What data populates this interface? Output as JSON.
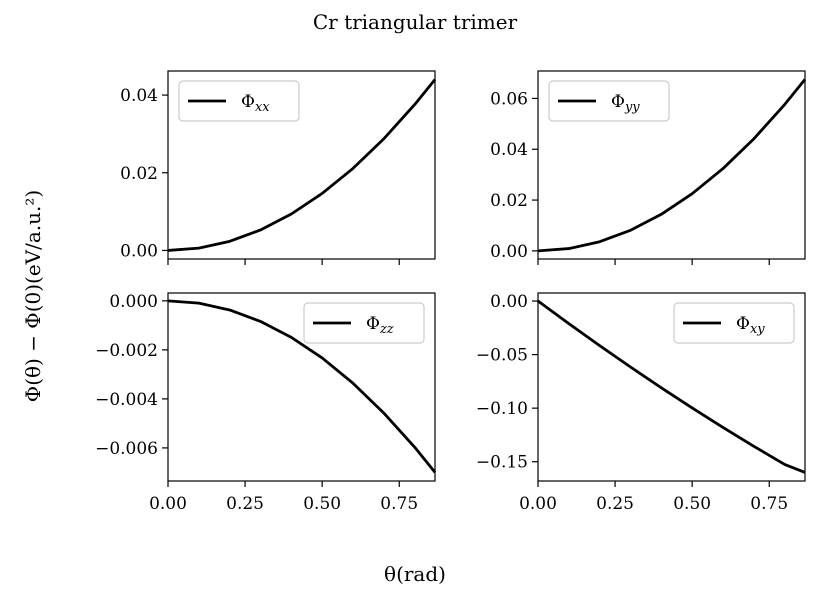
{
  "figure": {
    "title": "Cr triangular trimer",
    "xlabel": "θ(rad)",
    "ylabel": "Φ(θ) − Φ(0)(eV/a.u.²)"
  },
  "chart_data": [
    {
      "type": "line",
      "series": [
        {
          "name": "Φxx",
          "legend_main": "Φ",
          "legend_sub": "xx",
          "x": [
            0,
            0.1,
            0.2,
            0.3,
            0.4,
            0.5,
            0.6,
            0.7,
            0.8,
            0.866
          ],
          "values": [
            0,
            0.00059,
            0.00235,
            0.00528,
            0.00939,
            0.01467,
            0.02112,
            0.02875,
            0.03755,
            0.044
          ]
        }
      ],
      "xlim": [
        0,
        0.866
      ],
      "ylim": [
        -0.0022,
        0.0462
      ],
      "xticks": [
        0,
        0.25,
        0.5,
        0.75
      ],
      "xtick_labels": [],
      "yticks": [
        0,
        0.02,
        0.04
      ],
      "ytick_labels": [
        "0.00",
        "0.02",
        "0.04"
      ],
      "legend": "top-left",
      "grid": false
    },
    {
      "type": "line",
      "series": [
        {
          "name": "Φyy",
          "legend_main": "Φ",
          "legend_sub": "yy",
          "x": [
            0,
            0.1,
            0.2,
            0.3,
            0.4,
            0.5,
            0.6,
            0.7,
            0.8,
            0.866
          ],
          "values": [
            0,
            0.0009,
            0.0036,
            0.0081,
            0.0144,
            0.0225,
            0.0324,
            0.0441,
            0.0576,
            0.0675
          ]
        }
      ],
      "xlim": [
        0,
        0.866
      ],
      "ylim": [
        -0.0032,
        0.0708
      ],
      "xticks": [
        0,
        0.25,
        0.5,
        0.75
      ],
      "xtick_labels": [],
      "yticks": [
        0,
        0.02,
        0.04,
        0.06
      ],
      "ytick_labels": [
        "0.00",
        "0.02",
        "0.04",
        "0.06"
      ],
      "legend": "top-left",
      "grid": false
    },
    {
      "type": "line",
      "series": [
        {
          "name": "Φzz",
          "legend_main": "Φ",
          "legend_sub": "zz",
          "x": [
            0,
            0.1,
            0.2,
            0.3,
            0.4,
            0.5,
            0.6,
            0.7,
            0.8,
            0.866
          ],
          "values": [
            0,
            -9.4e-05,
            -0.000373,
            -0.00084,
            -0.00149,
            -0.00233,
            -0.00336,
            -0.00458,
            -0.00597,
            -0.007
          ]
        }
      ],
      "xlim": [
        0,
        0.866
      ],
      "ylim": [
        -0.00735,
        0.00032
      ],
      "xticks": [
        0,
        0.25,
        0.5,
        0.75
      ],
      "xtick_labels": [
        "0.00",
        "0.25",
        "0.50",
        "0.75"
      ],
      "yticks": [
        0,
        -0.002,
        -0.004,
        -0.006
      ],
      "ytick_labels": [
        "0.000",
        "−0.002",
        "−0.004",
        "−0.006"
      ],
      "legend": "top-right",
      "grid": false
    },
    {
      "type": "line",
      "series": [
        {
          "name": "Φxy",
          "legend_main": "Φ",
          "legend_sub": "xy",
          "x": [
            0,
            0.1,
            0.2,
            0.3,
            0.4,
            0.5,
            0.6,
            0.7,
            0.8,
            0.866
          ],
          "values": [
            0,
            -0.0211,
            -0.0416,
            -0.0616,
            -0.081,
            -0.0998,
            -0.118,
            -0.1356,
            -0.1525,
            -0.16
          ]
        }
      ],
      "xlim": [
        0,
        0.866
      ],
      "ylim": [
        -0.168,
        0.0075
      ],
      "xticks": [
        0,
        0.25,
        0.5,
        0.75
      ],
      "xtick_labels": [
        "0.00",
        "0.25",
        "0.50",
        "0.75"
      ],
      "yticks": [
        0,
        -0.05,
        -0.1,
        -0.15
      ],
      "ytick_labels": [
        "0.00",
        "−0.05",
        "−0.10",
        "−0.15"
      ],
      "legend": "top-right",
      "grid": false
    }
  ]
}
